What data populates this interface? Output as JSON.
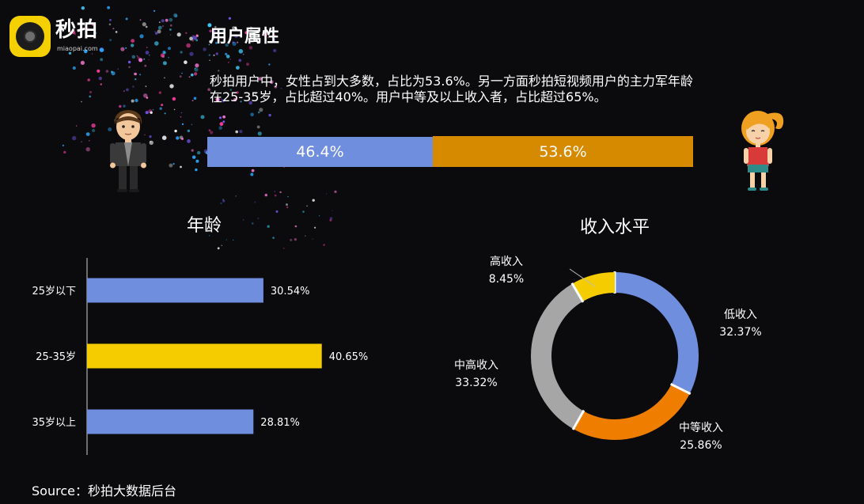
{
  "brand": {
    "name": "秒拍",
    "url": "miaopai.com"
  },
  "header": {
    "title": "用户属性",
    "summary": "秒拍用户中，女性占到大多数，占比为53.6%。另一方面秒拍短视频用户的主力军年龄在25-35岁，占比超过40%。用户中等及以上收入者，占比超过65%。"
  },
  "colors": {
    "background": "#0b0b0d",
    "blue": "#6f8ede",
    "orange": "#d68a00",
    "yellow": "#f5cc00",
    "donut_orange": "#ee7d00",
    "gray": "#a6a6a6",
    "text": "#ffffff"
  },
  "gender": {
    "male_label": "46.4%",
    "female_label": "53.6%",
    "male_icon": "man-icon",
    "female_icon": "woman-icon"
  },
  "chart_data": [
    {
      "type": "bar",
      "orientation": "horizontal",
      "categories": [
        "男",
        "女"
      ],
      "values": [
        46.4,
        53.6
      ],
      "stacked": true,
      "data_labels": [
        "46.4%",
        "53.6%"
      ],
      "colors": [
        "#6f8ede",
        "#d68a00"
      ]
    },
    {
      "type": "bar",
      "orientation": "horizontal",
      "title": "年龄",
      "categories": [
        "25岁以下",
        "25-35岁",
        "35岁以上"
      ],
      "values": [
        30.54,
        40.65,
        28.81
      ],
      "data_labels": [
        "30.54%",
        "40.65%",
        "28.81%"
      ],
      "colors": [
        "#6f8ede",
        "#f5cc00",
        "#6f8ede"
      ],
      "xlim": [
        0,
        50
      ],
      "grid": false,
      "legend": "none"
    },
    {
      "type": "pie",
      "donut": true,
      "title": "收入水平",
      "categories": [
        "低收入",
        "中等收入",
        "中高收入",
        "高收入"
      ],
      "values": [
        32.37,
        25.86,
        33.32,
        8.45
      ],
      "data_labels": [
        "32.37%",
        "25.86%",
        "33.32%",
        "8.45%"
      ],
      "colors": [
        "#6f8ede",
        "#ee7d00",
        "#a6a6a6",
        "#f5cc00"
      ],
      "legend": "none"
    }
  ],
  "footer": {
    "source": "Source：秒拍大数据后台"
  }
}
